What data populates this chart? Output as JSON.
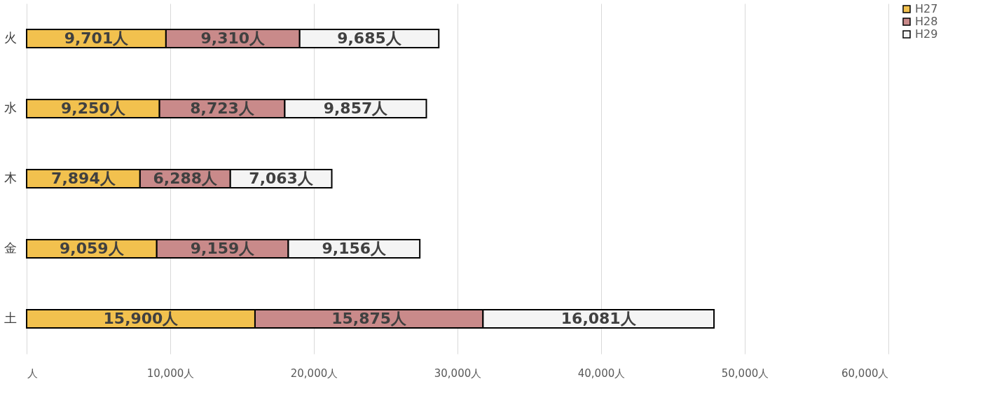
{
  "chart_data": {
    "type": "bar",
    "orientation": "horizontal",
    "stacked": true,
    "categories": [
      "火",
      "水",
      "木",
      "金",
      "土"
    ],
    "series": [
      {
        "name": "H27",
        "color": "#f2c14e",
        "values": [
          9701,
          9250,
          7894,
          9059,
          15900
        ],
        "value_labels": [
          "9,701人",
          "9,250人",
          "7,894人",
          "9,059人",
          "15,900人"
        ]
      },
      {
        "name": "H28",
        "color": "#c98a8a",
        "values": [
          9310,
          8723,
          6288,
          9159,
          15875
        ],
        "value_labels": [
          "9,310人",
          "8,723人",
          "6,288人",
          "9,159人",
          "15,875人"
        ]
      },
      {
        "name": "H29",
        "color": "#f4f4f4",
        "values": [
          9685,
          9857,
          7063,
          9156,
          16081
        ],
        "value_labels": [
          "9,685人",
          "9,857人",
          "7,063人",
          "9,156人",
          "16,081人"
        ]
      }
    ],
    "xlim": [
      0,
      60000
    ],
    "xticks": [
      {
        "value": 0,
        "label": "人"
      },
      {
        "value": 10000,
        "label": "10,000人"
      },
      {
        "value": 20000,
        "label": "20,000人"
      },
      {
        "value": 30000,
        "label": "30,000人"
      },
      {
        "value": 40000,
        "label": "40,000人"
      },
      {
        "value": 50000,
        "label": "50,000人"
      },
      {
        "value": 60000,
        "label": "60,000人"
      }
    ],
    "grid": "x",
    "legend": "right"
  }
}
